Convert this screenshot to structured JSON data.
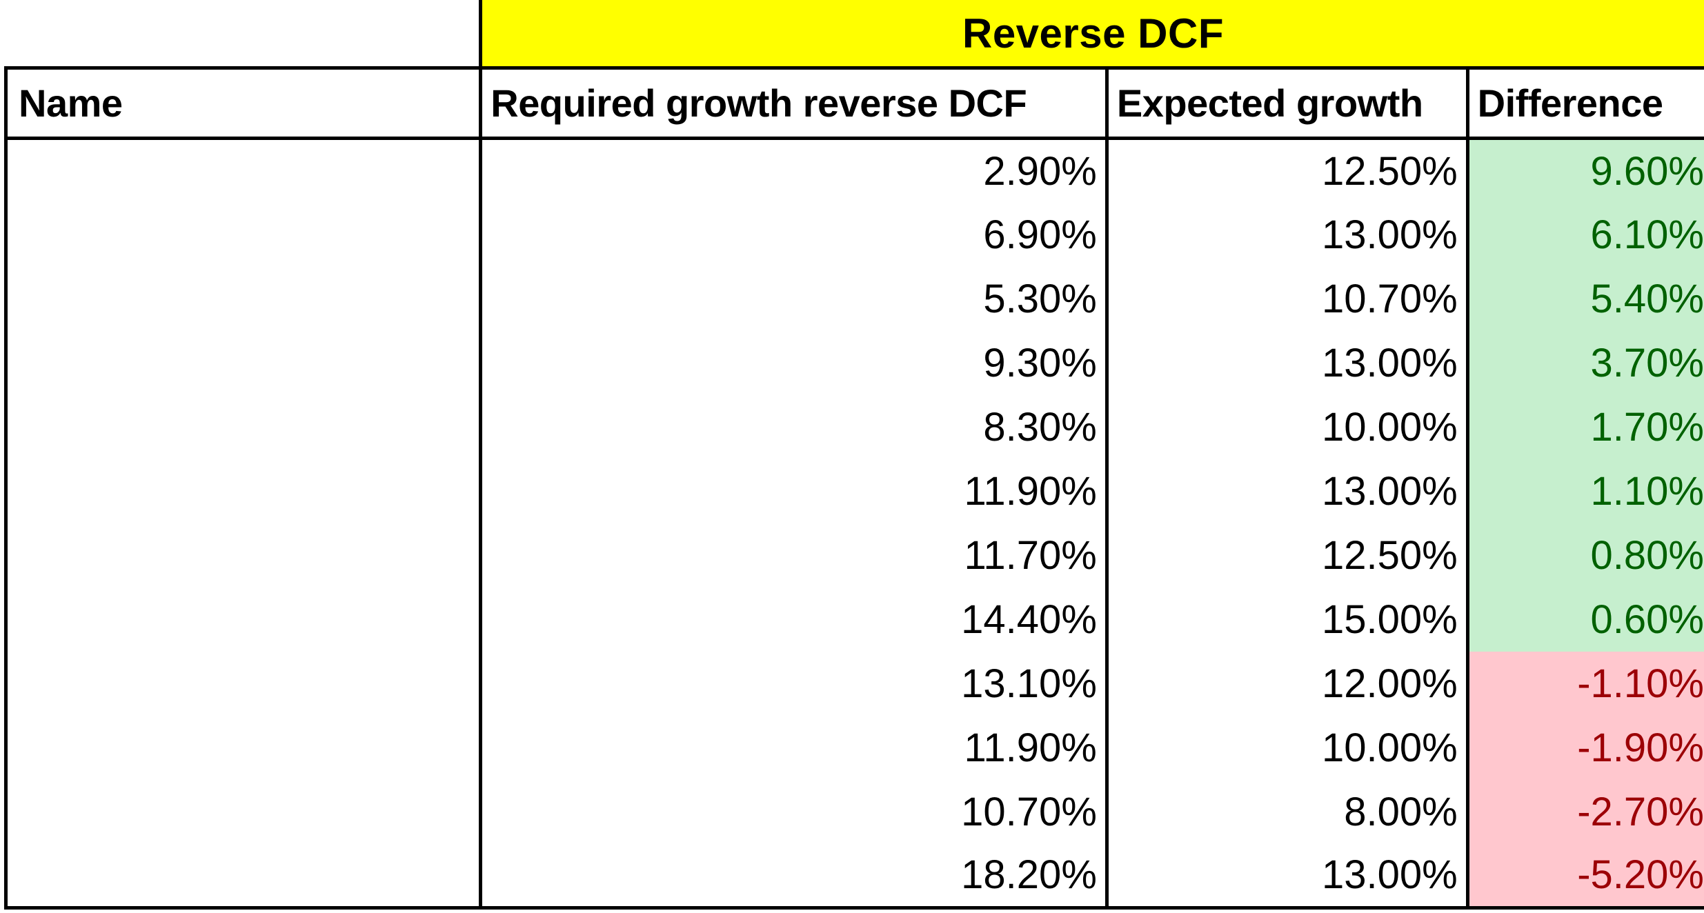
{
  "banner": {
    "title": "Reverse DCF"
  },
  "colors": {
    "banner_bg": "#ffff00",
    "positive_bg": "#c6efce",
    "positive_text": "#006100",
    "negative_bg": "#ffc7ce",
    "negative_text": "#9c0006"
  },
  "table": {
    "headers": {
      "name": "Name",
      "required": "Required growth reverse DCF",
      "expected": "Expected growth",
      "difference": "Difference"
    },
    "rows": [
      {
        "name": "",
        "required": "2.90%",
        "expected": "12.50%",
        "difference": "9.60%",
        "positive": true
      },
      {
        "name": "",
        "required": "6.90%",
        "expected": "13.00%",
        "difference": "6.10%",
        "positive": true
      },
      {
        "name": "",
        "required": "5.30%",
        "expected": "10.70%",
        "difference": "5.40%",
        "positive": true
      },
      {
        "name": "",
        "required": "9.30%",
        "expected": "13.00%",
        "difference": "3.70%",
        "positive": true
      },
      {
        "name": "",
        "required": "8.30%",
        "expected": "10.00%",
        "difference": "1.70%",
        "positive": true
      },
      {
        "name": "",
        "required": "11.90%",
        "expected": "13.00%",
        "difference": "1.10%",
        "positive": true
      },
      {
        "name": "",
        "required": "11.70%",
        "expected": "12.50%",
        "difference": "0.80%",
        "positive": true
      },
      {
        "name": "",
        "required": "14.40%",
        "expected": "15.00%",
        "difference": "0.60%",
        "positive": true
      },
      {
        "name": "",
        "required": "13.10%",
        "expected": "12.00%",
        "difference": "-1.10%",
        "positive": false
      },
      {
        "name": "",
        "required": "11.90%",
        "expected": "10.00%",
        "difference": "-1.90%",
        "positive": false
      },
      {
        "name": "",
        "required": "10.70%",
        "expected": "8.00%",
        "difference": "-2.70%",
        "positive": false
      },
      {
        "name": "",
        "required": "18.20%",
        "expected": "13.00%",
        "difference": "-5.20%",
        "positive": false
      }
    ]
  }
}
